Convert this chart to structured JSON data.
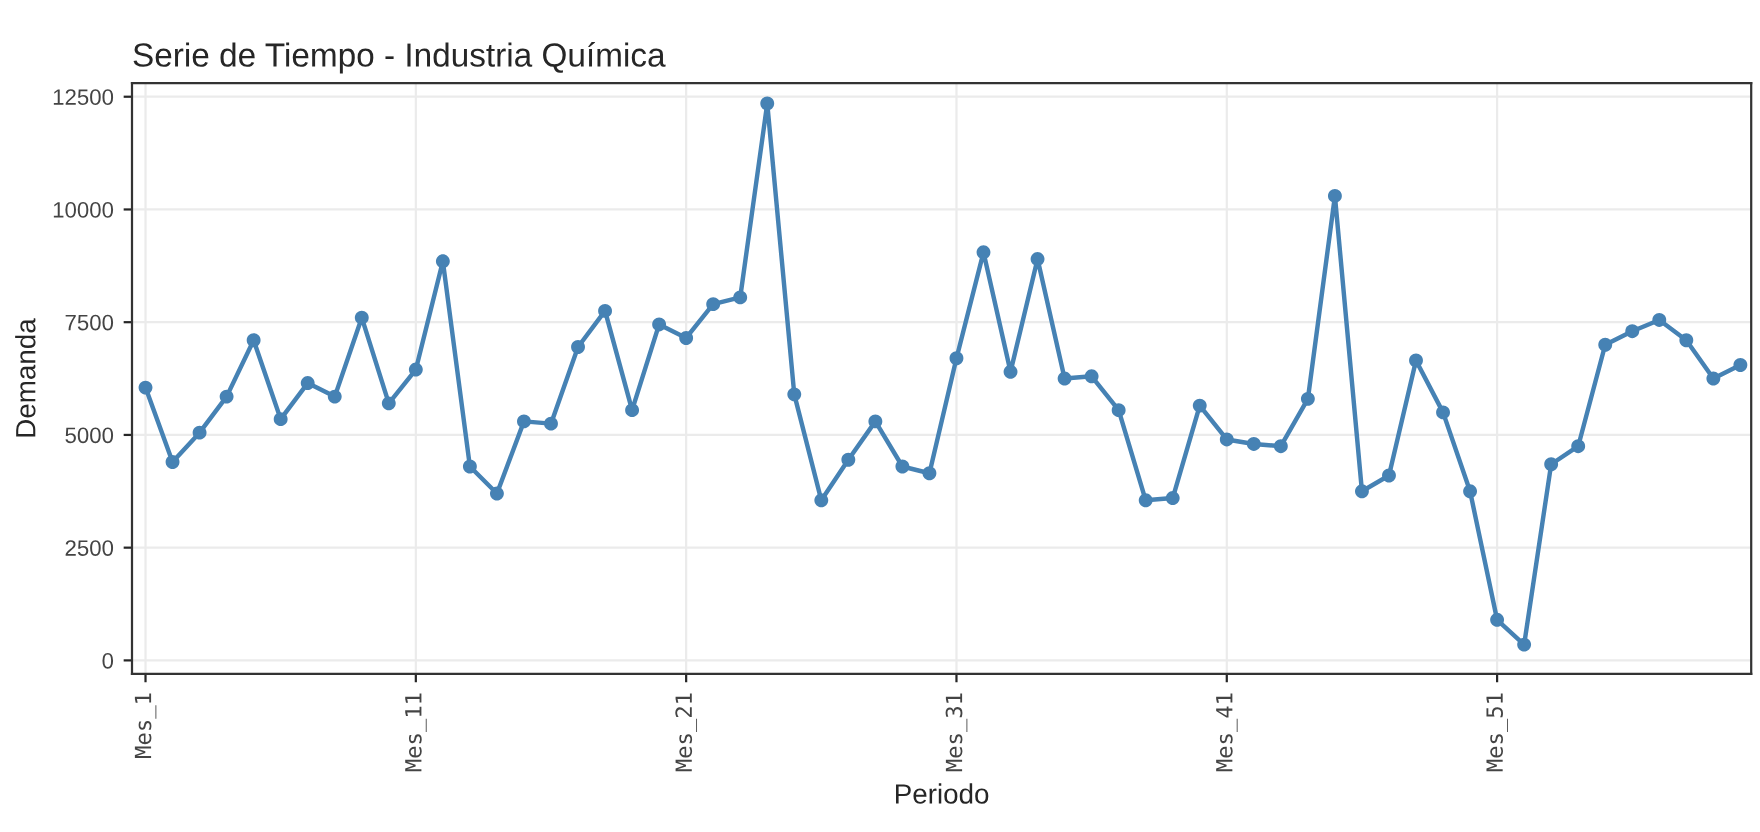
{
  "chart_data": {
    "type": "line",
    "title": "Serie de Tiempo - Industria Química",
    "xlabel": "Periodo",
    "ylabel": "Demanda",
    "categories": [
      "Mes_1",
      null,
      null,
      null,
      null,
      null,
      null,
      null,
      null,
      null,
      "Mes_11",
      null,
      null,
      null,
      null,
      null,
      null,
      null,
      null,
      null,
      "Mes_21",
      null,
      null,
      null,
      null,
      null,
      null,
      null,
      null,
      null,
      "Mes_31",
      null,
      null,
      null,
      null,
      null,
      null,
      null,
      null,
      null,
      "Mes_41",
      null,
      null,
      null,
      null,
      null,
      null,
      null,
      null,
      null,
      "Mes_51",
      null,
      null,
      null,
      null,
      null,
      null,
      null,
      null,
      null
    ],
    "series": [
      {
        "color": "#4682b4",
        "values": [
          6050,
          4400,
          5050,
          5850,
          7100,
          5350,
          6150,
          5850,
          7600,
          5700,
          6450,
          8850,
          4300,
          3700,
          5300,
          5250,
          6950,
          7750,
          5550,
          7450,
          7150,
          7900,
          8050,
          12350,
          5900,
          3550,
          4450,
          5300,
          4300,
          4150,
          6700,
          9050,
          6400,
          8900,
          6250,
          6300,
          5550,
          3550,
          3600,
          5650,
          4900,
          4800,
          4750,
          5800,
          10300,
          3750,
          4100,
          6650,
          5500,
          3750,
          900,
          350,
          4350,
          4750,
          7000,
          7300,
          7550,
          7100,
          6250,
          6550
        ]
      }
    ],
    "ylim": [
      -300,
      12800
    ],
    "yticks": [
      0,
      2500,
      5000,
      7500,
      10000,
      12500
    ],
    "grid": true,
    "marker": "circle",
    "line_style": "solid"
  }
}
